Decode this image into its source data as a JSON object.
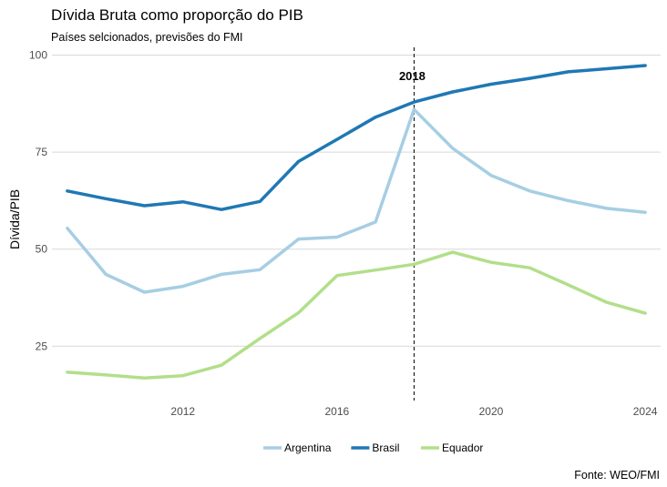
{
  "chart_data": {
    "type": "line",
    "title": "Dívida Bruta como proporção do PIB",
    "subtitle": "Países selcionados, previsões do FMI",
    "caption": "Fonte: WEO/FMI",
    "xlabel": "",
    "ylabel": "Dívida/PIB",
    "xlim": [
      2008.6,
      2024.4
    ],
    "ylim": [
      11,
      102
    ],
    "x_ticks": [
      2012,
      2016,
      2020,
      2024
    ],
    "y_ticks": [
      25,
      50,
      75,
      100
    ],
    "grid": "horizontal",
    "legend_position": "bottom",
    "annotation": {
      "x": 2018,
      "label": "2018",
      "y": 94
    },
    "x": [
      2009,
      2010,
      2011,
      2012,
      2013,
      2014,
      2015,
      2016,
      2017,
      2018,
      2019,
      2020,
      2021,
      2022,
      2023,
      2024
    ],
    "series": [
      {
        "name": "Argentina",
        "color": "#a6cee3",
        "values": [
          55.4,
          43.5,
          38.9,
          40.4,
          43.5,
          44.7,
          52.6,
          53.1,
          57.0,
          86.0,
          76.0,
          69.0,
          65.0,
          62.5,
          60.5,
          59.5
        ]
      },
      {
        "name": "Brasil",
        "color": "#1f78b4",
        "values": [
          65.0,
          63.0,
          61.2,
          62.2,
          60.2,
          62.3,
          72.6,
          78.3,
          84.0,
          87.9,
          90.5,
          92.5,
          94.0,
          95.7,
          96.5,
          97.3
        ]
      },
      {
        "name": "Equador",
        "color": "#b2df8a",
        "values": [
          18.3,
          17.6,
          16.8,
          17.4,
          20.1,
          27.0,
          33.6,
          43.2,
          44.6,
          46.1,
          49.2,
          46.6,
          45.2,
          40.8,
          36.3,
          33.5
        ]
      }
    ]
  }
}
